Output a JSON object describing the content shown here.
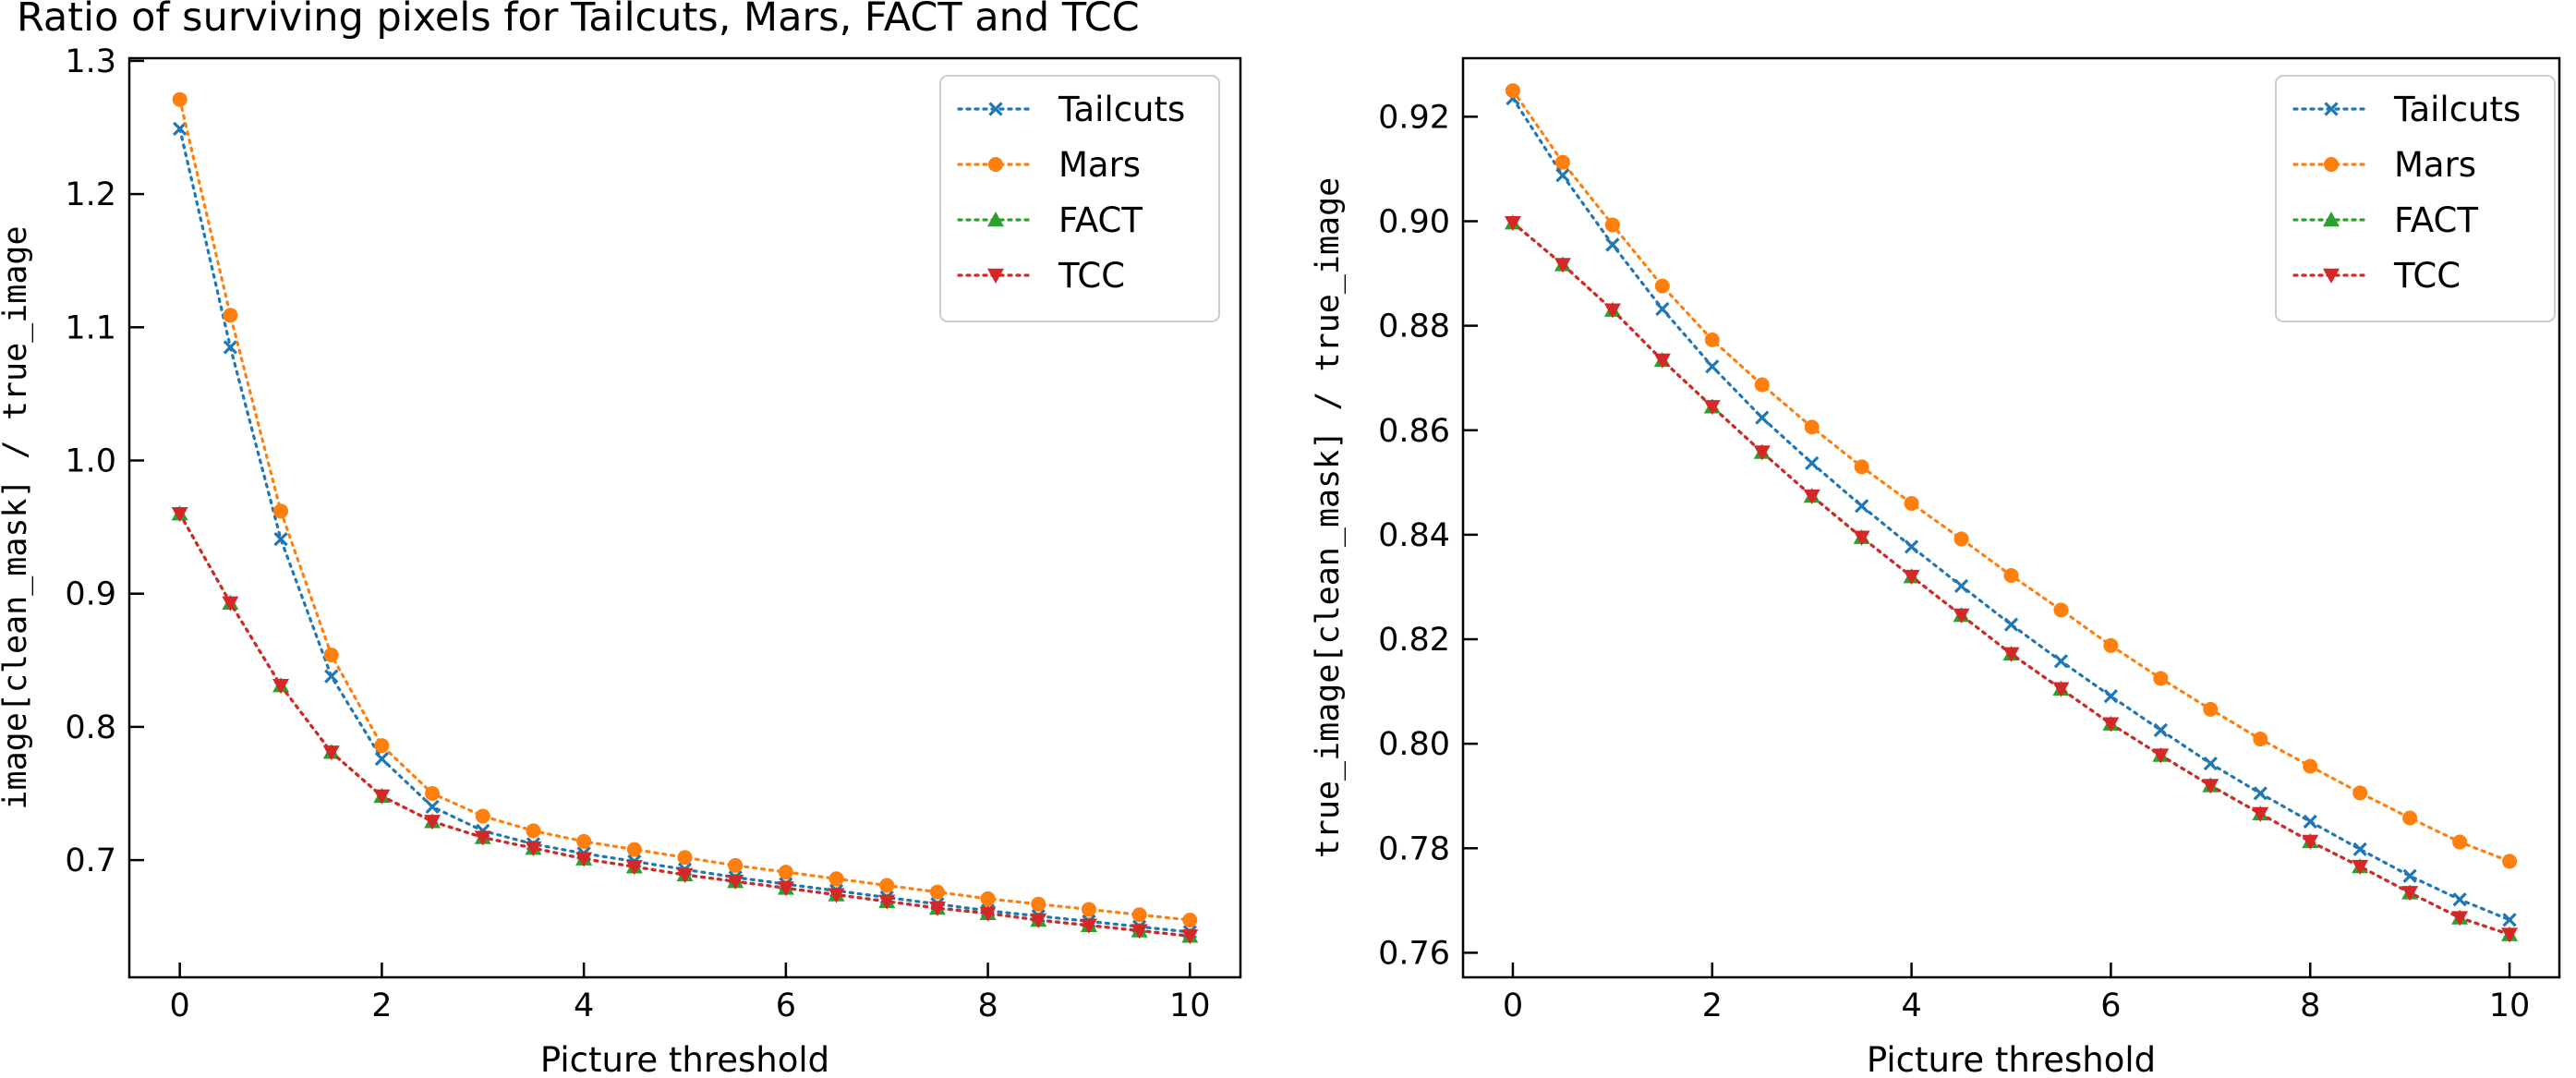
{
  "figure": {
    "title": "Ratio of surviving pixels for Tailcuts, Mars, FACT and TCC"
  },
  "chart_data": [
    {
      "type": "line",
      "title": "",
      "xlabel": "Picture threshold",
      "ylabel": "image[clean_mask] / true_image",
      "xlim": [
        -0.5,
        10.5
      ],
      "ylim": [
        0.612,
        1.302
      ],
      "xticks": [
        0,
        2,
        4,
        6,
        8,
        10
      ],
      "yticks": [
        0.7,
        0.8,
        0.9,
        1.0,
        1.1,
        1.2,
        1.3
      ],
      "ytick_labels": [
        "0.7",
        "0.8",
        "0.9",
        "1.0",
        "1.1",
        "1.2",
        "1.3"
      ],
      "grid": false,
      "legend": "top-right",
      "x": [
        0,
        0.5,
        1,
        1.5,
        2,
        2.5,
        3,
        3.5,
        4,
        4.5,
        5,
        5.5,
        6,
        6.5,
        7,
        7.5,
        8,
        8.5,
        9,
        9.5,
        10
      ],
      "series": [
        {
          "name": "Tailcuts",
          "color": "#1f77b4",
          "marker": "x",
          "values": [
            1.249,
            1.085,
            0.941,
            0.838,
            0.776,
            0.74,
            0.722,
            0.712,
            0.705,
            0.699,
            0.693,
            0.687,
            0.682,
            0.677,
            0.672,
            0.667,
            0.662,
            0.658,
            0.654,
            0.65,
            0.646
          ]
        },
        {
          "name": "Mars",
          "color": "#ff7f0e",
          "marker": "circle",
          "values": [
            1.271,
            1.109,
            0.962,
            0.854,
            0.786,
            0.75,
            0.733,
            0.722,
            0.714,
            0.708,
            0.702,
            0.696,
            0.691,
            0.686,
            0.681,
            0.676,
            0.671,
            0.667,
            0.663,
            0.659,
            0.655
          ]
        },
        {
          "name": "FACT",
          "color": "#2ca02c",
          "marker": "triangle-up",
          "values": [
            0.96,
            0.893,
            0.831,
            0.781,
            0.748,
            0.729,
            0.717,
            0.709,
            0.701,
            0.695,
            0.689,
            0.684,
            0.679,
            0.674,
            0.669,
            0.664,
            0.66,
            0.655,
            0.651,
            0.647,
            0.643
          ]
        },
        {
          "name": "TCC",
          "color": "#d62728",
          "marker": "triangle-down",
          "values": [
            0.96,
            0.893,
            0.831,
            0.781,
            0.748,
            0.729,
            0.717,
            0.709,
            0.701,
            0.695,
            0.689,
            0.684,
            0.679,
            0.674,
            0.669,
            0.664,
            0.66,
            0.655,
            0.651,
            0.647,
            0.643
          ]
        }
      ]
    },
    {
      "type": "line",
      "title": "",
      "xlabel": "Picture threshold",
      "ylabel": "true_image[clean_mask] / true_image",
      "xlim": [
        -0.5,
        10.5
      ],
      "ylim": [
        0.7553,
        0.9312
      ],
      "xticks": [
        0,
        2,
        4,
        6,
        8,
        10
      ],
      "yticks": [
        0.76,
        0.78,
        0.8,
        0.82,
        0.84,
        0.86,
        0.88,
        0.9,
        0.92
      ],
      "ytick_labels": [
        "0.76",
        "0.78",
        "0.80",
        "0.82",
        "0.84",
        "0.86",
        "0.88",
        "0.90",
        "0.92"
      ],
      "grid": false,
      "legend": "top-right",
      "x": [
        0,
        0.5,
        1,
        1.5,
        2,
        2.5,
        3,
        3.5,
        4,
        4.5,
        5,
        5.5,
        6,
        6.5,
        7,
        7.5,
        8,
        8.5,
        9,
        9.5,
        10
      ],
      "series": [
        {
          "name": "Tailcuts",
          "color": "#1f77b4",
          "marker": "x",
          "values": [
            0.9235,
            0.9088,
            0.8955,
            0.8832,
            0.8722,
            0.8624,
            0.8537,
            0.8455,
            0.8377,
            0.8302,
            0.8228,
            0.8158,
            0.8091,
            0.8026,
            0.7962,
            0.7905,
            0.7851,
            0.7798,
            0.7747,
            0.7702,
            0.7663
          ]
        },
        {
          "name": "Mars",
          "color": "#ff7f0e",
          "marker": "circle",
          "values": [
            0.925,
            0.9113,
            0.8993,
            0.8876,
            0.8773,
            0.8687,
            0.8606,
            0.853,
            0.846,
            0.8392,
            0.8322,
            0.8256,
            0.8188,
            0.8125,
            0.8066,
            0.8009,
            0.7957,
            0.7906,
            0.7858,
            0.7812,
            0.7775
          ]
        },
        {
          "name": "FACT",
          "color": "#2ca02c",
          "marker": "triangle-up",
          "values": [
            0.8997,
            0.8917,
            0.883,
            0.8734,
            0.8645,
            0.8558,
            0.8474,
            0.8395,
            0.832,
            0.8246,
            0.8172,
            0.8105,
            0.8038,
            0.7978,
            0.792,
            0.7866,
            0.7813,
            0.7765,
            0.7715,
            0.7667,
            0.7635
          ]
        },
        {
          "name": "TCC",
          "color": "#d62728",
          "marker": "triangle-down",
          "values": [
            0.8997,
            0.8917,
            0.883,
            0.8734,
            0.8645,
            0.8558,
            0.8474,
            0.8395,
            0.832,
            0.8246,
            0.8172,
            0.8105,
            0.8038,
            0.7978,
            0.792,
            0.7866,
            0.7813,
            0.7765,
            0.7715,
            0.7667,
            0.7635
          ]
        }
      ]
    }
  ]
}
